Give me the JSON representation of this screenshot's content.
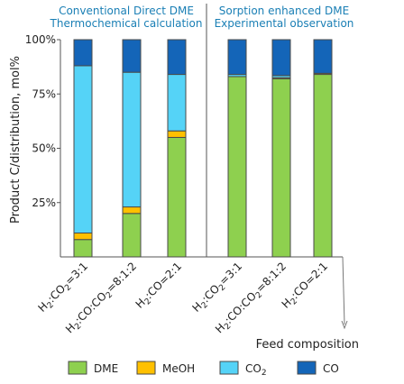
{
  "chart_data": {
    "type": "bar",
    "stacked": true,
    "title": "",
    "ylabel": "Product C/distribution, mol%",
    "xlabel": "Feed composition",
    "ylim": [
      0,
      100
    ],
    "yticks": [
      {
        "value": 25,
        "label": "25%"
      },
      {
        "value": 50,
        "label": "50%"
      },
      {
        "value": 75,
        "label": "75%"
      },
      {
        "value": 100,
        "label": "100%"
      }
    ],
    "groups": [
      {
        "title_line1": "Conventional Direct DME",
        "title_line2": "Thermochemical calculation",
        "title_color": "#1a7fb5"
      },
      {
        "title_line1": "Sorption enhanced DME",
        "title_line2": "Experimental observation",
        "title_color": "#1a7fb5"
      }
    ],
    "categories": [
      {
        "parts": [
          [
            "H",
            ""
          ],
          [
            "2",
            "sub"
          ],
          [
            ":CO",
            ""
          ],
          [
            "2",
            "sub"
          ],
          [
            "=3:1",
            ""
          ]
        ]
      },
      {
        "parts": [
          [
            "H",
            ""
          ],
          [
            "2",
            "sub"
          ],
          [
            ":CO:CO",
            ""
          ],
          [
            "2",
            "sub"
          ],
          [
            "=8:1:2",
            ""
          ]
        ]
      },
      {
        "parts": [
          [
            "H",
            ""
          ],
          [
            "2",
            "sub"
          ],
          [
            ":CO=2:1",
            ""
          ]
        ]
      },
      {
        "parts": [
          [
            "H",
            ""
          ],
          [
            "2",
            "sub"
          ],
          [
            ":CO",
            ""
          ],
          [
            "2",
            "sub"
          ],
          [
            "=3:1",
            ""
          ]
        ]
      },
      {
        "parts": [
          [
            "H",
            ""
          ],
          [
            "2",
            "sub"
          ],
          [
            ":CO:CO",
            ""
          ],
          [
            "2",
            "sub"
          ],
          [
            "=8:1:2",
            ""
          ]
        ]
      },
      {
        "parts": [
          [
            "H",
            ""
          ],
          [
            "2",
            "sub"
          ],
          [
            ":CO=2:1",
            ""
          ]
        ]
      }
    ],
    "series": [
      {
        "name": "DME",
        "name_sub": "",
        "color": "#8ed04f",
        "values": [
          8,
          20,
          55,
          83,
          82,
          84
        ]
      },
      {
        "name": "MeOH",
        "name_sub": "",
        "color": "#ffc000",
        "values": [
          3,
          3,
          3,
          0,
          0.5,
          0.5
        ]
      },
      {
        "name": "CO",
        "name_sub": "2",
        "color": "#55d3f7",
        "values": [
          77,
          62,
          26,
          1,
          1,
          0
        ]
      },
      {
        "name": "CO",
        "name_sub": "",
        "color": "#1465b8",
        "values": [
          12,
          15,
          16,
          16,
          16.5,
          15.5
        ]
      }
    ],
    "legend_position": "bottom",
    "grid": false
  }
}
